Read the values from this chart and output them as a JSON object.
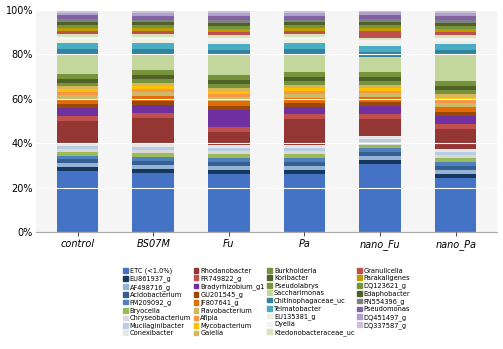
{
  "categories": [
    "control",
    "BS07M",
    "Fu",
    "Pa",
    "nano_Fu",
    "nano_Pa"
  ],
  "legends": [
    "ETC (<1.0%)",
    "EU861937_g",
    "AF498716_g",
    "Acidobacterium",
    "FM209092_g",
    "Bryocella",
    "Chryseobacterium",
    "Mucilaginibacter",
    "Conexibacter",
    "Rhodanobacter",
    "FR749822_g",
    "Bradyrhizobium_g1",
    "GU201545_g",
    "JF807641_g",
    "Flavobacterium",
    "Afipia",
    "Mycobacterium",
    "Gaiella",
    "Burkholderia",
    "Koribacter",
    "Pseudolabrys",
    "Saccharimonas",
    "Chitinophagaceae_uc",
    "Telmatobacter",
    "EU135381_g",
    "Dyella",
    "Ktedonobacteraceae_uc",
    "Granulicella",
    "Parakaligenes",
    "DQ123621_g",
    "Edaphobacter",
    "FN554396_g",
    "Pseudomonas",
    "DQ451497_g",
    "DQ337587_g"
  ],
  "colors": [
    "#4472C4",
    "#17375E",
    "#95B3D7",
    "#366092",
    "#4F81BD",
    "#9BBB59",
    "#D9D9D9",
    "#B8CCE4",
    "#E6E6E6",
    "#943634",
    "#C0504D",
    "#7030A0",
    "#984807",
    "#E36C09",
    "#CEB966",
    "#F79646",
    "#FFC000",
    "#D6B656",
    "#76923C",
    "#4F6228",
    "#77933C",
    "#C3D69B",
    "#31849B",
    "#4BACC6",
    "#EBF1DE",
    "#F2F2F2",
    "#D8E4BC",
    "#C0504D",
    "#BE9B00",
    "#77933C",
    "#4F6228",
    "#808080",
    "#8064A2",
    "#B1A0C7",
    "#CCC0DA"
  ],
  "data_raw": {
    "ETC (<1.0%)": [
      31.0,
      30.0,
      29.0,
      29.5,
      35.5,
      27.0
    ],
    "EU861937_g": [
      2.0,
      2.0,
      2.0,
      2.0,
      2.0,
      2.0
    ],
    "AF498716_g": [
      2.0,
      2.0,
      2.0,
      2.0,
      2.0,
      2.0
    ],
    "Acidobacterium": [
      2.0,
      2.0,
      2.0,
      2.0,
      2.0,
      2.0
    ],
    "FM209092_g": [
      2.0,
      2.0,
      2.0,
      2.0,
      2.0,
      2.0
    ],
    "Bryocella": [
      2.0,
      2.0,
      2.0,
      2.0,
      2.0,
      2.0
    ],
    "Chryseobacterium": [
      1.5,
      1.5,
      1.5,
      1.5,
      1.5,
      1.5
    ],
    "Mucilaginibacter": [
      1.5,
      1.5,
      1.5,
      1.5,
      1.5,
      1.5
    ],
    "Conexibacter": [
      1.5,
      1.5,
      1.5,
      1.5,
      1.5,
      1.5
    ],
    "Rhodanobacter": [
      11.0,
      13.0,
      6.5,
      13.0,
      9.0,
      10.0
    ],
    "FR749822_g": [
      2.5,
      2.5,
      2.5,
      2.5,
      2.5,
      2.5
    ],
    "Bradyrhizobium_g1": [
      4.0,
      4.0,
      8.0,
      3.5,
      4.0,
      4.0
    ],
    "GU201545_g": [
      2.0,
      2.0,
      2.0,
      2.0,
      2.0,
      2.0
    ],
    "JF807641_g": [
      2.5,
      2.5,
      2.5,
      2.5,
      2.5,
      2.5
    ],
    "Flavobacterium": [
      2.0,
      2.0,
      2.0,
      2.0,
      2.0,
      2.0
    ],
    "Afipia": [
      1.5,
      1.5,
      1.5,
      1.5,
      1.5,
      1.5
    ],
    "Mycobacterium": [
      1.5,
      1.5,
      1.5,
      1.5,
      1.5,
      1.5
    ],
    "Gaiella": [
      1.5,
      1.5,
      1.5,
      1.5,
      1.5,
      1.5
    ],
    "Burkholderia": [
      2.0,
      2.0,
      2.0,
      2.0,
      2.0,
      2.0
    ],
    "Koribacter": [
      2.0,
      2.0,
      2.0,
      2.0,
      2.0,
      2.0
    ],
    "Pseudolabrys": [
      2.5,
      2.5,
      2.5,
      2.5,
      2.5,
      2.5
    ],
    "Saccharimonas": [
      10.0,
      8.0,
      10.0,
      9.0,
      8.0,
      13.0
    ],
    "Chitinophagaceae_uc": [
      2.5,
      2.5,
      2.5,
      2.5,
      2.5,
      2.5
    ],
    "Telmatobacter": [
      3.0,
      3.0,
      3.0,
      3.0,
      3.0,
      3.0
    ],
    "EU135381_g": [
      1.5,
      1.5,
      1.5,
      1.5,
      1.5,
      1.5
    ],
    "Dyella": [
      1.5,
      1.5,
      1.5,
      1.5,
      1.5,
      1.5
    ],
    "Ktedonobacteraceae_uc": [
      1.5,
      1.5,
      1.5,
      1.5,
      1.5,
      1.5
    ],
    "Granulicella": [
      1.5,
      1.5,
      1.5,
      1.5,
      3.5,
      1.5
    ],
    "Parakaligenes": [
      1.5,
      1.5,
      1.5,
      1.5,
      1.5,
      1.5
    ],
    "DQ123621_g": [
      1.5,
      1.5,
      1.5,
      1.5,
      1.5,
      1.5
    ],
    "Edaphobacter": [
      1.5,
      1.5,
      1.5,
      1.5,
      1.5,
      1.5
    ],
    "FN554396_g": [
      1.5,
      1.5,
      1.5,
      1.5,
      1.5,
      1.5
    ],
    "Pseudomonas": [
      2.0,
      2.0,
      2.0,
      2.0,
      2.0,
      2.0
    ],
    "DQ451497_g": [
      1.5,
      1.5,
      1.5,
      1.5,
      1.5,
      1.5
    ],
    "DQ337587_g": [
      1.5,
      1.5,
      1.5,
      1.5,
      1.5,
      1.5
    ]
  },
  "ylim": [
    0,
    100
  ],
  "yticks": [
    0,
    20,
    40,
    60,
    80,
    100
  ],
  "ytick_labels": [
    "0%",
    "20%",
    "40%",
    "60%",
    "80%",
    "100%"
  ],
  "bar_width": 0.55,
  "figsize": [
    5.03,
    3.49
  ],
  "dpi": 100
}
